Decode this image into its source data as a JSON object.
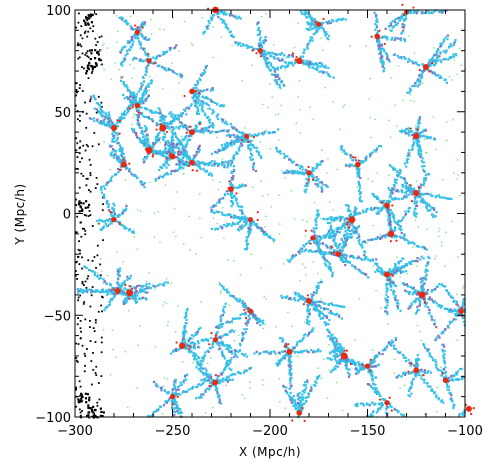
{
  "chart_data": {
    "type": "scatter",
    "title": "",
    "xlabel": "X (Mpc/h)",
    "ylabel": "Y (Mpc/h)",
    "xlim": [
      -300,
      -100
    ],
    "ylim": [
      -100,
      100
    ],
    "x_ticks": [
      -300,
      -250,
      -200,
      -150,
      -100
    ],
    "y_ticks": [
      -100,
      -50,
      0,
      50,
      100
    ],
    "x_tick_labels": [
      "−300",
      "−250",
      "−200",
      "−150",
      "−100"
    ],
    "y_tick_labels": [
      "−100",
      "−50",
      "0",
      "50",
      "100"
    ],
    "grid": false,
    "legend": "none",
    "colors": {
      "black": "#000000",
      "cyan": "#35c0e8",
      "green": "#7be37b",
      "red": "#e8290f",
      "purple": "#8a6bb8"
    },
    "halos": [
      {
        "x": -228,
        "y": 100,
        "r": 2.2
      },
      {
        "x": -268,
        "y": 89,
        "r": 1.4
      },
      {
        "x": -175,
        "y": 93,
        "r": 1.2
      },
      {
        "x": -130,
        "y": 99,
        "r": 1.2
      },
      {
        "x": -262,
        "y": 75,
        "r": 1.3
      },
      {
        "x": -205,
        "y": 80,
        "r": 1.4
      },
      {
        "x": -145,
        "y": 87,
        "r": 1.6
      },
      {
        "x": -185,
        "y": 75,
        "r": 2.0
      },
      {
        "x": -120,
        "y": 72,
        "r": 1.8
      },
      {
        "x": -268,
        "y": 53,
        "r": 1.5
      },
      {
        "x": -240,
        "y": 60,
        "r": 1.6
      },
      {
        "x": -280,
        "y": 42,
        "r": 1.8
      },
      {
        "x": -255,
        "y": 42,
        "r": 2.2
      },
      {
        "x": -240,
        "y": 40,
        "r": 1.8
      },
      {
        "x": -240,
        "y": 25,
        "r": 1.6
      },
      {
        "x": -250,
        "y": 28,
        "r": 1.8
      },
      {
        "x": -262,
        "y": 31,
        "r": 2.2
      },
      {
        "x": -275,
        "y": 24,
        "r": 1.8
      },
      {
        "x": -212,
        "y": 38,
        "r": 1.3
      },
      {
        "x": -125,
        "y": 38,
        "r": 1.8
      },
      {
        "x": -155,
        "y": 24,
        "r": 1.6
      },
      {
        "x": -180,
        "y": 20,
        "r": 1.4
      },
      {
        "x": -125,
        "y": 10,
        "r": 1.8
      },
      {
        "x": -140,
        "y": 4,
        "r": 1.6
      },
      {
        "x": -220,
        "y": 12,
        "r": 1.6
      },
      {
        "x": -210,
        "y": -3,
        "r": 1.3
      },
      {
        "x": -158,
        "y": -3,
        "r": 2.2
      },
      {
        "x": -178,
        "y": -12,
        "r": 1.3
      },
      {
        "x": -165,
        "y": -20,
        "r": 1.6
      },
      {
        "x": -138,
        "y": -10,
        "r": 2.0
      },
      {
        "x": -280,
        "y": -3,
        "r": 1.4
      },
      {
        "x": -278,
        "y": -38,
        "r": 1.6
      },
      {
        "x": -272,
        "y": -39,
        "r": 2.2
      },
      {
        "x": -140,
        "y": -30,
        "r": 1.8
      },
      {
        "x": -122,
        "y": -40,
        "r": 2.2
      },
      {
        "x": -102,
        "y": -48,
        "r": 1.6
      },
      {
        "x": -245,
        "y": -65,
        "r": 2.0
      },
      {
        "x": -228,
        "y": -62,
        "r": 1.4
      },
      {
        "x": -190,
        "y": -68,
        "r": 1.8
      },
      {
        "x": -162,
        "y": -70,
        "r": 2.2
      },
      {
        "x": -150,
        "y": -75,
        "r": 1.4
      },
      {
        "x": -125,
        "y": -77,
        "r": 1.6
      },
      {
        "x": -110,
        "y": -82,
        "r": 1.4
      },
      {
        "x": -228,
        "y": -83,
        "r": 1.6
      },
      {
        "x": -250,
        "y": -90,
        "r": 1.4
      },
      {
        "x": -185,
        "y": -98,
        "r": 1.6
      },
      {
        "x": -140,
        "y": -93,
        "r": 1.4
      },
      {
        "x": -98,
        "y": -96,
        "r": 1.8
      },
      {
        "x": -180,
        "y": -43,
        "r": 1.6
      },
      {
        "x": -210,
        "y": -48,
        "r": 1.4
      }
    ]
  }
}
